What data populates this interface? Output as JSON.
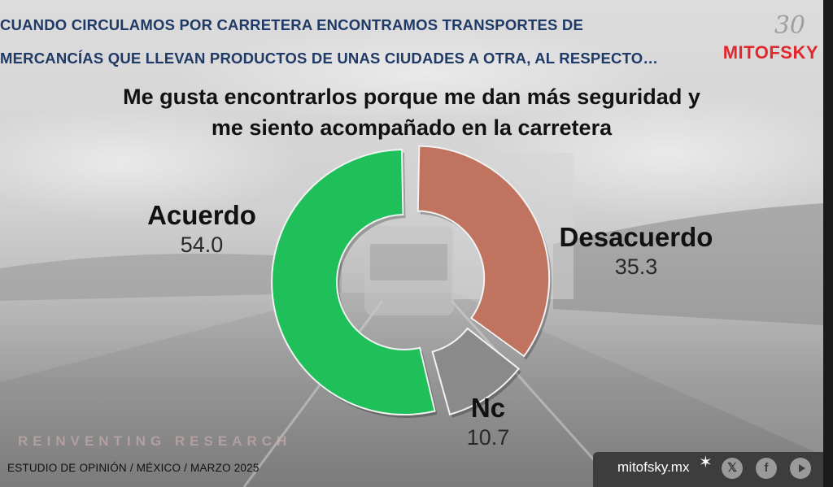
{
  "header": {
    "line1": "CUANDO CIRCULAMOS POR CARRETERA ENCONTRAMOS  TRANSPORTES DE",
    "line2": "MERCANCÍAS QUE LLEVAN PRODUCTOS DE UNAS CIUDADES A OTRA, AL RESPECTO…"
  },
  "logo": {
    "mark": "30",
    "brand": "MITOFSKY",
    "brand_color": "#e0282e"
  },
  "chart_data": {
    "type": "pie",
    "title_line1": "Me gusta encontrarlos porque me dan más seguridad y",
    "title_line2": "me siento acompañado en la carretera",
    "donut": true,
    "slices": [
      {
        "label": "Acuerdo",
        "value": 54.0,
        "value_text": "54.0",
        "color": "#1fc05a"
      },
      {
        "label": "Desacuerdo",
        "value": 35.3,
        "value_text": "35.3",
        "color": "#c0735e"
      },
      {
        "label": "Nc",
        "value": 10.7,
        "value_text": "10.7",
        "color": "#8a8a8a"
      }
    ]
  },
  "watermark": "REINVENTING RESEARCH",
  "footer": {
    "study": "ESTUDIO DE OPINIÓN / MÉXICO / MARZO 2025",
    "site": "mitofsky.mx",
    "social": [
      {
        "icon": "x-icon",
        "glyph": "𝕏"
      },
      {
        "icon": "facebook-icon",
        "glyph": "f"
      },
      {
        "icon": "youtube-icon",
        "glyph": ""
      }
    ]
  }
}
